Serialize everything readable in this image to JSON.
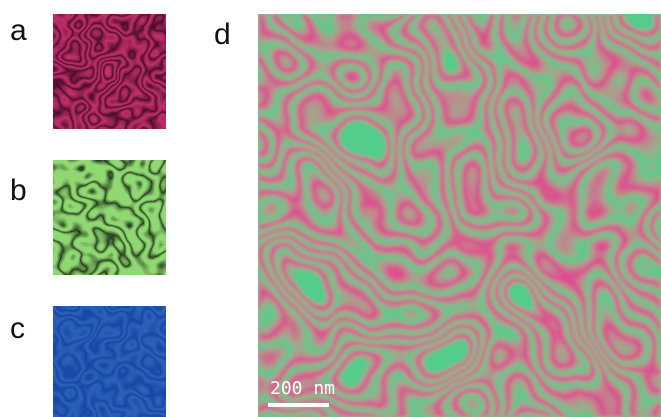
{
  "panels": {
    "a": {
      "label": "a"
    },
    "b": {
      "label": "b"
    },
    "c": {
      "label": "c"
    },
    "d": {
      "label": "d",
      "scale_bar": "200 nm"
    }
  }
}
